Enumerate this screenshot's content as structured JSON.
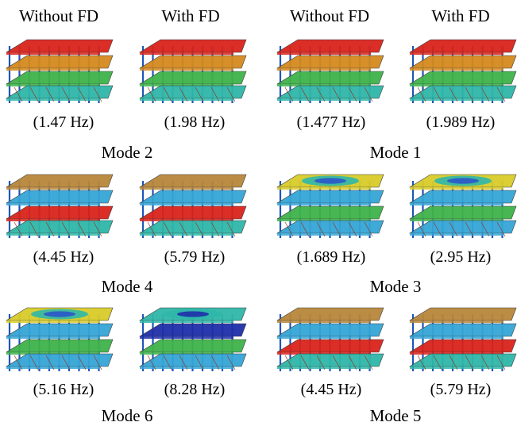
{
  "headers": [
    "Without FD",
    "With FD",
    "Without FD",
    "With FD"
  ],
  "rows": [
    {
      "models": [
        {
          "frequency": "(1.47 Hz)",
          "scheme": "sway"
        },
        {
          "frequency": "(1.98 Hz)",
          "scheme": "sway"
        },
        {
          "frequency": "(1.477 Hz)",
          "scheme": "sway"
        },
        {
          "frequency": "(1.989 Hz)",
          "scheme": "sway"
        }
      ],
      "modes": [
        "Mode 2",
        "Mode 1"
      ]
    },
    {
      "models": [
        {
          "frequency": "(4.45 Hz)",
          "scheme": "bend"
        },
        {
          "frequency": "(5.79 Hz)",
          "scheme": "bend"
        },
        {
          "frequency": "(1.689 Hz)",
          "scheme": "twist"
        },
        {
          "frequency": "(2.95 Hz)",
          "scheme": "twist"
        }
      ],
      "modes": [
        "Mode 4",
        "Mode 3"
      ]
    },
    {
      "models": [
        {
          "frequency": "(5.16 Hz)",
          "scheme": "twist"
        },
        {
          "frequency": "(8.28 Hz)",
          "scheme": "twist_deep"
        },
        {
          "frequency": "(4.45 Hz)",
          "scheme": "bend"
        },
        {
          "frequency": "(5.79 Hz)",
          "scheme": "bend"
        }
      ],
      "modes": [
        "Mode 6",
        "Mode 5"
      ]
    }
  ],
  "colors": {
    "red": "#d9231b",
    "orange": "#d48a1e",
    "brown": "#b8863a",
    "yellow": "#d9cc2a",
    "green": "#3fb34a",
    "teal": "#2fb7a8",
    "cyan": "#35a6d6",
    "blue": "#2b57c9",
    "deep_blue": "#1f2fa8",
    "column": "#1e56b8"
  }
}
